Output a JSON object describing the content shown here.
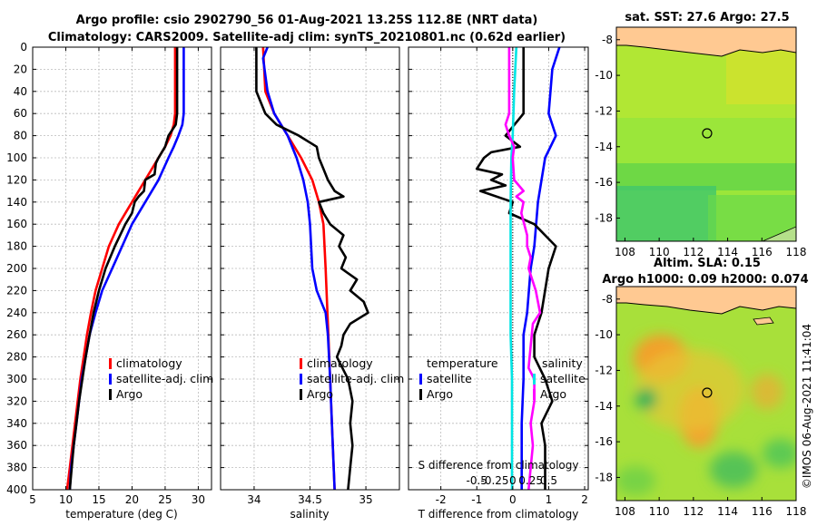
{
  "title": {
    "line1": "Argo profile: csio 2902790_56 01-Aug-2021 13.25S 112.8E (NRT data)",
    "line2": "Climatology: CARS2009. Satellite-adj clim: synTS_20210801.nc (0.62d earlier)"
  },
  "colors": {
    "climatology": "#ff0000",
    "satellite": "#0000ff",
    "argo": "#000000",
    "temperature_diff": "#ff00ff",
    "salinity_diff": "#00e5e5"
  },
  "y_axis": {
    "range": [
      0,
      400
    ],
    "ticks": [
      "0",
      "20",
      "40",
      "60",
      "80",
      "100",
      "120",
      "140",
      "160",
      "180",
      "200",
      "220",
      "240",
      "260",
      "280",
      "300",
      "320",
      "340",
      "360",
      "380",
      "400"
    ]
  },
  "chart_data": [
    {
      "type": "line",
      "title": "temperature profile",
      "xlabel": "temperature (deg C)",
      "xlim": [
        5,
        32
      ],
      "x_ticks": [
        "5",
        "10",
        "15",
        "20",
        "25",
        "30"
      ],
      "ylim": [
        400,
        0
      ],
      "legend": {
        "climatology": "climatology",
        "satellite": "satellite-adj. clim",
        "argo": "Argo"
      },
      "series": [
        {
          "name": "climatology",
          "depth": [
            0,
            60,
            70,
            80,
            90,
            100,
            120,
            140,
            160,
            180,
            200,
            220,
            240,
            260,
            280,
            300,
            320,
            340,
            360,
            380,
            400
          ],
          "values": [
            26.5,
            26.5,
            26.3,
            25.8,
            25,
            24,
            22,
            20,
            18,
            16.5,
            15.5,
            14.5,
            13.8,
            13.2,
            12.7,
            12.2,
            11.8,
            11.4,
            11,
            10.6,
            10.2
          ]
        },
        {
          "name": "satellite",
          "depth": [
            0,
            60,
            70,
            80,
            90,
            100,
            120,
            140,
            160,
            180,
            200,
            220,
            240,
            260,
            280,
            300,
            320,
            340,
            360,
            380,
            400
          ],
          "values": [
            27.8,
            27.8,
            27.6,
            27,
            26.3,
            25.5,
            24,
            22,
            20,
            18.5,
            17,
            15.5,
            14.5,
            13.6,
            13,
            12.4,
            12,
            11.6,
            11.2,
            10.8,
            10.6
          ]
        },
        {
          "name": "Argo",
          "depth": [
            0,
            60,
            70,
            80,
            90,
            100,
            105,
            115,
            120,
            130,
            135,
            140,
            150,
            160,
            180,
            200,
            220,
            240,
            260,
            280,
            300,
            320,
            340,
            360,
            380,
            400
          ],
          "values": [
            26.8,
            26.8,
            26.6,
            25.5,
            25,
            24,
            23.6,
            23.4,
            22,
            21.8,
            21,
            20.4,
            20,
            19,
            17.4,
            16,
            15,
            14.2,
            13.6,
            13,
            12.5,
            12,
            11.6,
            11.2,
            10.9,
            10.6
          ]
        }
      ]
    },
    {
      "type": "line",
      "title": "salinity profile",
      "xlabel": "salinity",
      "xlim": [
        33.7,
        35.3
      ],
      "x_ticks": [
        "34",
        "34.5",
        "35"
      ],
      "ylim": [
        400,
        0
      ],
      "legend": {
        "climatology": "climatology",
        "satellite": "satellite-adj. clim",
        "argo": "Argo"
      },
      "series": [
        {
          "name": "climatology",
          "depth": [
            0,
            40,
            60,
            80,
            100,
            120,
            140,
            160,
            200,
            250,
            300,
            350,
            400
          ],
          "values": [
            34.08,
            34.1,
            34.18,
            34.3,
            34.42,
            34.52,
            34.58,
            34.62,
            34.64,
            34.66,
            34.68,
            34.7,
            34.72
          ]
        },
        {
          "name": "satellite",
          "depth": [
            0,
            10,
            40,
            60,
            80,
            100,
            120,
            140,
            160,
            200,
            220,
            240,
            260,
            300,
            350,
            400
          ],
          "values": [
            34.12,
            34.08,
            34.12,
            34.18,
            34.3,
            34.38,
            34.44,
            34.48,
            34.5,
            34.52,
            34.56,
            34.64,
            34.66,
            34.68,
            34.7,
            34.72
          ]
        },
        {
          "name": "Argo",
          "depth": [
            0,
            40,
            60,
            70,
            80,
            90,
            100,
            110,
            120,
            130,
            135,
            140,
            150,
            160,
            170,
            180,
            190,
            200,
            210,
            220,
            230,
            240,
            250,
            260,
            270,
            280,
            300,
            320,
            340,
            360,
            380,
            400
          ],
          "values": [
            34.02,
            34.02,
            34.1,
            34.2,
            34.4,
            34.56,
            34.58,
            34.62,
            34.66,
            34.72,
            34.8,
            34.58,
            34.62,
            34.68,
            34.8,
            34.76,
            34.82,
            34.78,
            34.92,
            34.86,
            34.98,
            35.02,
            34.86,
            34.8,
            34.78,
            34.74,
            34.84,
            34.88,
            34.86,
            34.88,
            34.86,
            34.84
          ]
        }
      ]
    },
    {
      "type": "line",
      "title": "difference from climatology",
      "xlabel": "T difference from climatology",
      "xlabel_top": "S difference from climatology",
      "xlim": [
        -2.9,
        2.1
      ],
      "x_ticks": [
        "-2",
        "-1",
        "0",
        "1",
        "2"
      ],
      "x_ticks_top": [
        "-0.5",
        "-0.25",
        "0",
        "0.25",
        "0.5"
      ],
      "ylim": [
        400,
        0
      ],
      "legend": {
        "temperature_header": "temperature",
        "salinity_header": "salinity",
        "satellite": "satellite",
        "argo": "Argo"
      },
      "series": [
        {
          "name": "temperature satellite",
          "depth": [
            0,
            20,
            60,
            80,
            100,
            140,
            180,
            200,
            240,
            260,
            300,
            340,
            400
          ],
          "values": [
            1.3,
            1.1,
            1.0,
            1.2,
            0.9,
            0.7,
            0.6,
            0.5,
            0.4,
            0.3,
            0.3,
            0.25,
            0.25
          ]
        },
        {
          "name": "temperature Argo",
          "depth": [
            0,
            60,
            80,
            90,
            95,
            100,
            110,
            115,
            120,
            125,
            130,
            140,
            150,
            160,
            180,
            200,
            240,
            260,
            280,
            300,
            320,
            340,
            360,
            400
          ],
          "values": [
            0.3,
            0.3,
            -0.2,
            0.2,
            -0.6,
            -0.8,
            -1.0,
            -0.3,
            -0.6,
            -0.2,
            -0.9,
            0.0,
            -0.1,
            0.6,
            1.2,
            1.0,
            0.8,
            0.6,
            0.6,
            0.9,
            1.1,
            0.8,
            0.9,
            0.9
          ]
        },
        {
          "name": "salinity satellite",
          "depth": [
            0,
            40,
            80,
            100,
            140,
            200,
            260,
            300,
            340,
            400
          ],
          "values": [
            0.05,
            0.02,
            0.0,
            -0.02,
            -0.03,
            -0.03,
            -0.03,
            -0.01,
            -0.01,
            -0.01
          ]
        },
        {
          "name": "salinity Argo",
          "depth": [
            0,
            20,
            60,
            70,
            80,
            90,
            100,
            120,
            130,
            135,
            140,
            150,
            170,
            180,
            190,
            200,
            220,
            240,
            250,
            270,
            290,
            300,
            320,
            340,
            360,
            380,
            400
          ],
          "values": [
            -0.05,
            -0.05,
            -0.05,
            -0.1,
            -0.05,
            0.02,
            0.0,
            0.02,
            0.15,
            0.05,
            0.15,
            0.12,
            0.2,
            0.2,
            0.25,
            0.22,
            0.32,
            0.38,
            0.28,
            0.25,
            0.22,
            0.3,
            0.3,
            0.25,
            0.28,
            0.25,
            0.22
          ]
        }
      ]
    },
    {
      "type": "heatmap",
      "title": "sat. SST: 27.6 Argo: 27.5",
      "xlim": [
        107.5,
        118
      ],
      "ylim": [
        -19.3,
        -7.3
      ],
      "x_ticks": [
        "108",
        "110",
        "112",
        "114",
        "116",
        "118"
      ],
      "y_ticks": [
        "-8",
        "-10",
        "-12",
        "-14",
        "-16",
        "-18"
      ],
      "marker": {
        "lon": 112.8,
        "lat": -13.25
      }
    },
    {
      "type": "heatmap",
      "title_line1": "Altim. SLA: 0.15",
      "title_line2": "Argo h1000: 0.09 h2000: 0.074",
      "xlim": [
        107.5,
        118
      ],
      "ylim": [
        -19.3,
        -7.3
      ],
      "x_ticks": [
        "108",
        "110",
        "112",
        "114",
        "116",
        "118"
      ],
      "y_ticks": [
        "-8",
        "-10",
        "-12",
        "-14",
        "-16",
        "-18"
      ],
      "marker": {
        "lon": 112.8,
        "lat": -13.25
      }
    }
  ],
  "watermark": "©IMOS 06-Aug-2021 11:41:04"
}
